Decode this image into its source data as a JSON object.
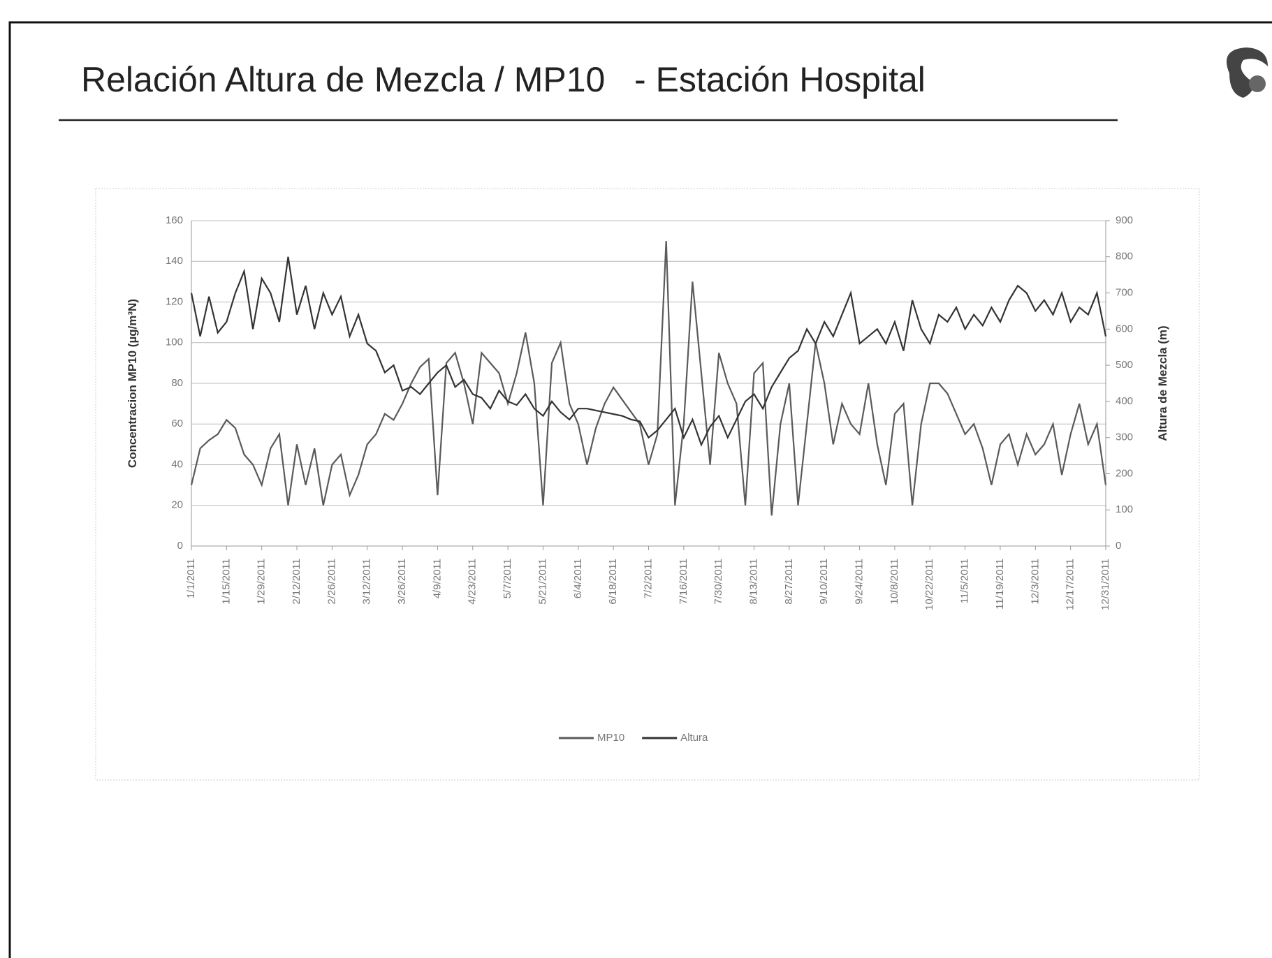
{
  "header": {
    "title": "Relación Altura de Mezcla / MP10   - Estación Hospital"
  },
  "chart_data": {
    "type": "line",
    "y_label": "Concentracion MP10 (µg/m³N)",
    "y2_label": "Altura de Mezcla (m)",
    "categories": [
      "1/1/2011",
      null,
      null,
      null,
      "1/15/2011",
      null,
      null,
      null,
      "1/29/2011",
      null,
      null,
      null,
      "2/12/2011",
      null,
      null,
      null,
      "2/26/2011",
      null,
      null,
      null,
      "3/12/2011",
      null,
      null,
      null,
      "3/26/2011",
      null,
      null,
      null,
      "4/9/2011",
      null,
      null,
      null,
      "4/23/2011",
      null,
      null,
      null,
      "5/7/2011",
      null,
      null,
      null,
      "5/21/2011",
      null,
      null,
      null,
      "6/4/2011",
      null,
      null,
      null,
      "6/18/2011",
      null,
      null,
      null,
      "7/2/2011",
      null,
      null,
      null,
      "7/16/2011",
      null,
      null,
      null,
      "7/30/2011",
      null,
      null,
      null,
      "8/13/2011",
      null,
      null,
      null,
      "8/27/2011",
      null,
      null,
      null,
      "9/10/2011",
      null,
      null,
      null,
      "9/24/2011",
      null,
      null,
      null,
      "10/8/2011",
      null,
      null,
      null,
      "10/22/2011",
      null,
      null,
      null,
      "11/5/2011",
      null,
      null,
      null,
      "11/19/2011",
      null,
      null,
      null,
      "12/3/2011",
      null,
      null,
      null,
      "12/17/2011",
      null,
      null,
      null,
      "12/31/2011"
    ],
    "series": [
      {
        "name": "MP10",
        "color": "#5a5a5a",
        "values": [
          30,
          48,
          52,
          55,
          62,
          58,
          45,
          40,
          30,
          48,
          55,
          20,
          50,
          30,
          48,
          20,
          40,
          45,
          25,
          35,
          50,
          55,
          65,
          62,
          70,
          80,
          88,
          92,
          25,
          90,
          95,
          80,
          60,
          95,
          90,
          85,
          70,
          85,
          105,
          80,
          20,
          90,
          100,
          70,
          60,
          40,
          58,
          70,
          78,
          72,
          66,
          60,
          40,
          55,
          150,
          20,
          60,
          130,
          85,
          40,
          95,
          80,
          70,
          20,
          85,
          90,
          15,
          60,
          80,
          20,
          60,
          100,
          80,
          50,
          70,
          60,
          55,
          80,
          50,
          30,
          65,
          70,
          20,
          60,
          80,
          80,
          75,
          65,
          55,
          60,
          48,
          30,
          50,
          55,
          40,
          55,
          45,
          50,
          60,
          35,
          55,
          70,
          50,
          60,
          30
        ]
      },
      {
        "name": "Altura",
        "color": "#333333",
        "axis": "y2",
        "values": [
          700,
          580,
          690,
          590,
          620,
          700,
          760,
          600,
          740,
          700,
          620,
          800,
          640,
          720,
          600,
          700,
          640,
          690,
          580,
          640,
          560,
          540,
          480,
          500,
          430,
          440,
          420,
          450,
          480,
          500,
          440,
          460,
          420,
          410,
          380,
          430,
          400,
          390,
          420,
          380,
          360,
          400,
          370,
          350,
          380,
          380,
          375,
          370,
          365,
          360,
          350,
          345,
          300,
          320,
          350,
          380,
          300,
          350,
          280,
          330,
          360,
          300,
          350,
          400,
          420,
          380,
          440,
          480,
          520,
          540,
          600,
          560,
          620,
          580,
          640,
          700,
          560,
          580,
          600,
          560,
          620,
          540,
          680,
          600,
          560,
          640,
          620,
          660,
          600,
          640,
          610,
          660,
          620,
          680,
          720,
          700,
          650,
          680,
          640,
          700,
          620,
          660,
          640,
          700,
          580
        ]
      }
    ],
    "ylim": [
      0,
      160
    ],
    "yticks": [
      0,
      20,
      40,
      60,
      80,
      100,
      120,
      140,
      160
    ],
    "y2lim": [
      0,
      900
    ],
    "y2ticks": [
      0,
      100,
      200,
      300,
      400,
      500,
      600,
      700,
      800,
      900
    ],
    "grid": true,
    "legend": "bottom"
  }
}
